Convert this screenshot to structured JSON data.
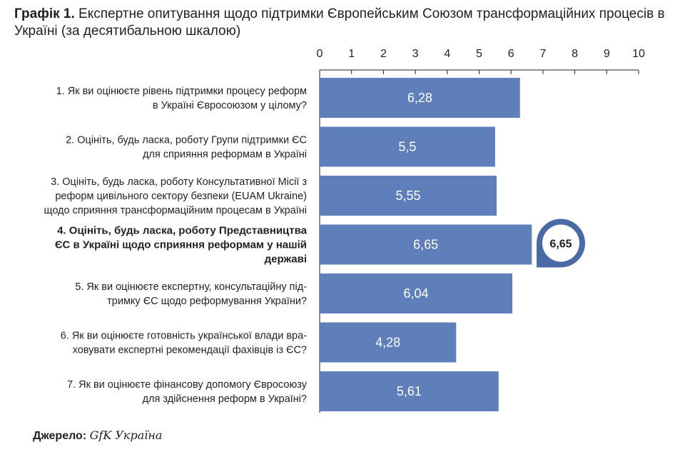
{
  "title": {
    "prefix": "Графік 1.",
    "text": "Експертне опитування щодо підтримки Європейським Союзом трансформаційних процесів в Україні (за десятибальною шкалою)"
  },
  "source": {
    "label": "Джерело:",
    "value": "GfK Україна"
  },
  "colors": {
    "bar": "#5e7fba",
    "callout": "#4a6aa6",
    "axis": "#231f20"
  },
  "chart_data": {
    "type": "bar",
    "orientation": "horizontal",
    "xlim": [
      0,
      10
    ],
    "ticks": [
      "0",
      "1",
      "2",
      "3",
      "4",
      "5",
      "6",
      "7",
      "8",
      "9",
      "10"
    ],
    "grid": false,
    "categories": [
      [
        "1. Як ви оцінюєте рівень підтримки процесу реформ",
        "в Україні Євросоюзом у цілому?"
      ],
      [
        "2. Оцініть, будь ласка, роботу Групи підтримки ЄС",
        "для сприяння реформам в Україні"
      ],
      [
        "3. Оцініть, будь ласка, роботу Консультативної Місії з",
        "реформ цивільного сектору безпеки (EUAM Ukraine)",
        "щодо сприяння трансформаційним процесам в Україні"
      ],
      [
        "4. Оцініть, будь ласка, роботу Представництва",
        "ЄС в Україні щодо сприяння реформам у нашій",
        "державі"
      ],
      [
        "5. Як ви оцінюєте експертну, консультаційну під-",
        "тримку ЄС щодо реформування України?"
      ],
      [
        "6. Як ви оцінюєте готовність української влади вра-",
        "ховувати експертні рекомендації фахівців із ЄС?"
      ],
      [
        "7. Як ви оцінюєте фінансову допомогу Євросоюзу",
        "для здійснення реформ в Україні?"
      ]
    ],
    "values": [
      6.28,
      5.5,
      5.55,
      6.65,
      6.04,
      4.28,
      5.61
    ],
    "value_labels": [
      "6,28",
      "5,5",
      "5,55",
      "6,65",
      "6,04",
      "4,28",
      "5,61"
    ],
    "highlight_index": 3,
    "highlight_label": "6,65"
  }
}
